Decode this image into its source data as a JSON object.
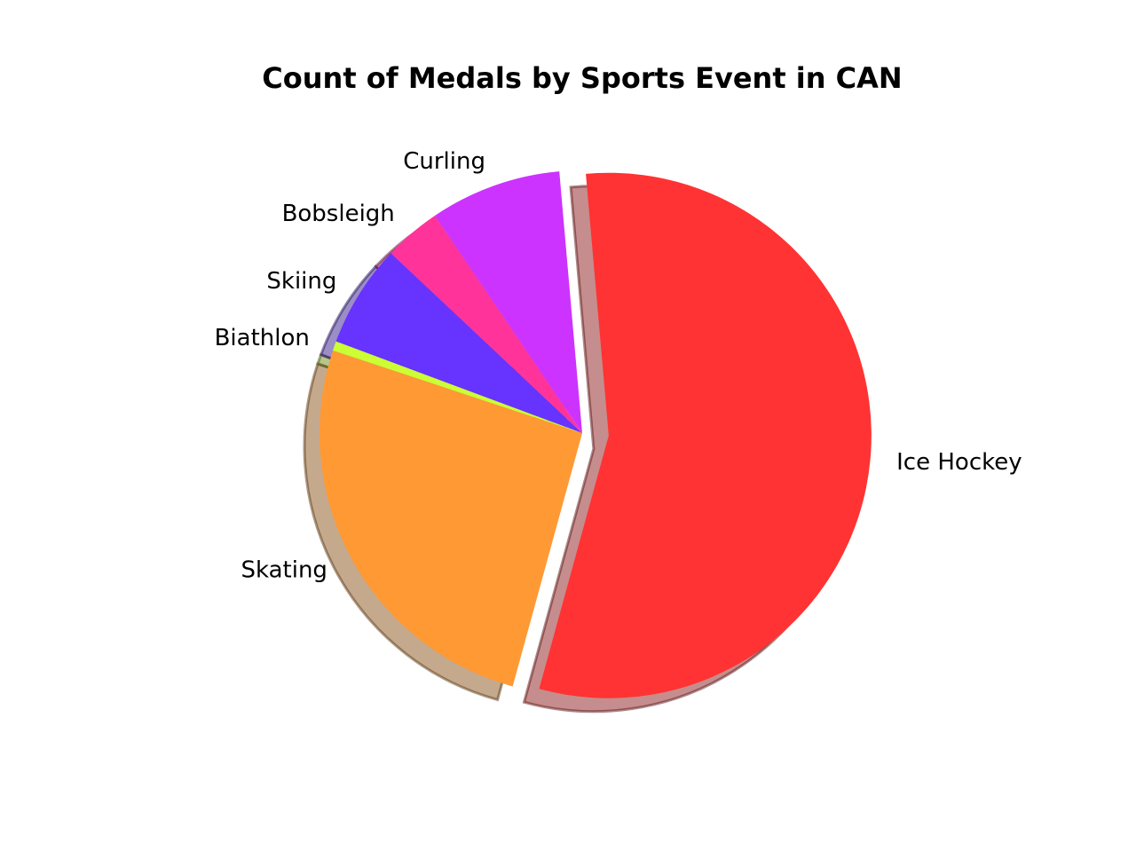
{
  "chart_data": {
    "type": "pie",
    "title": "Count of Medals by Sports Event in CAN",
    "start_angle_deg": 95,
    "direction": "clockwise",
    "shadow": true,
    "slices": [
      {
        "label": "Ice Hockey",
        "value": 57.1,
        "color": "#FF3333",
        "exploded": true
      },
      {
        "label": "Skating",
        "value": 26.5,
        "color": "#FF9933",
        "exploded": false
      },
      {
        "label": "Biathlon",
        "value": 0.6,
        "color": "#CCFF33",
        "exploded": false
      },
      {
        "label": "Skiing",
        "value": 6.5,
        "color": "#6633FF",
        "exploded": false
      },
      {
        "label": "Bobsleigh",
        "value": 3.6,
        "color": "#FF3399",
        "exploded": false
      },
      {
        "label": "Curling",
        "value": 8.3,
        "color": "#CC33FF",
        "exploded": false
      }
    ]
  }
}
